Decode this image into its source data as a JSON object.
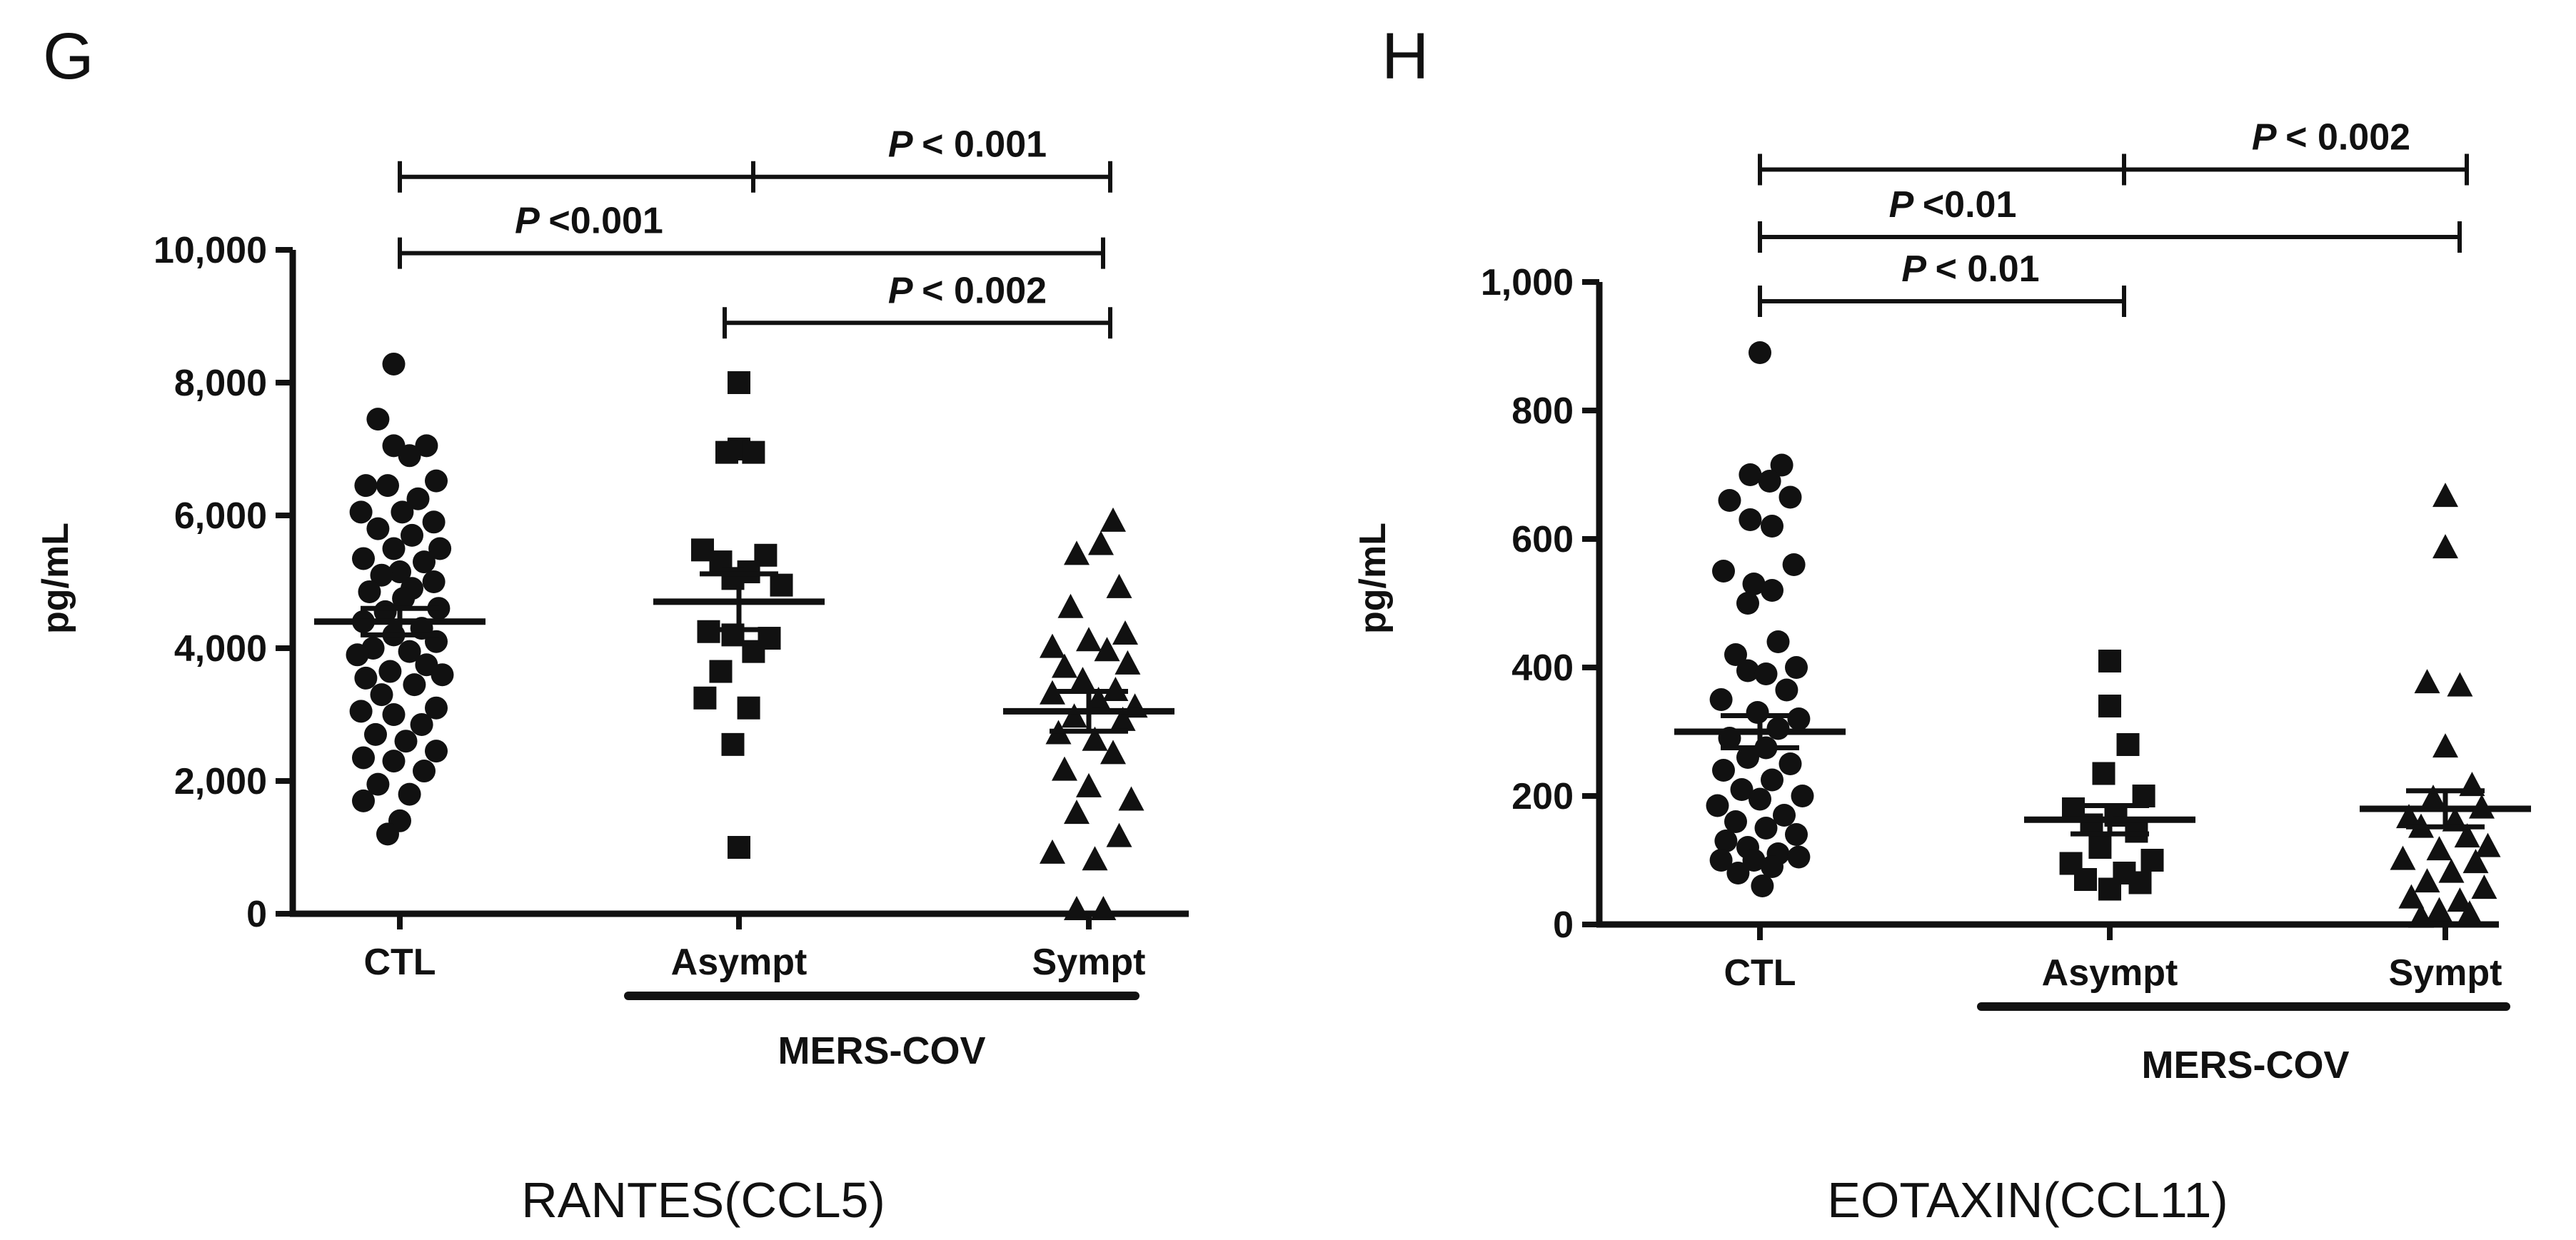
{
  "chart_data": [
    {
      "type": "scatter",
      "panel_letter": "G",
      "caption": "RANTES(CCL5)",
      "ylabel": "pg/mL",
      "ylim": [
        0,
        10000
      ],
      "yticks": [
        0,
        2000,
        4000,
        6000,
        8000,
        10000
      ],
      "ytick_labels": [
        "0",
        "2,000",
        "4,000",
        "6,000",
        "8,000",
        "10,000"
      ],
      "categories": [
        "CTL",
        "Asympt",
        "Sympt"
      ],
      "group_label": "MERS-COV",
      "group_spans": [
        1,
        2
      ],
      "markers": [
        "circle",
        "square",
        "triangle"
      ],
      "series": [
        {
          "category": "CTL",
          "mean": 4400,
          "sem": 200,
          "points": [
            [
              -0.05,
              8280
            ],
            [
              -0.18,
              7450
            ],
            [
              0.22,
              7050
            ],
            [
              -0.05,
              7050
            ],
            [
              0.08,
              6900
            ],
            [
              0.3,
              6520
            ],
            [
              -0.28,
              6450
            ],
            [
              -0.1,
              6450
            ],
            [
              0.15,
              6250
            ],
            [
              -0.32,
              6050
            ],
            [
              0.02,
              6050
            ],
            [
              0.28,
              5900
            ],
            [
              -0.18,
              5800
            ],
            [
              0.1,
              5700
            ],
            [
              0.33,
              5500
            ],
            [
              -0.05,
              5500
            ],
            [
              -0.3,
              5350
            ],
            [
              0.2,
              5300
            ],
            [
              0.0,
              5150
            ],
            [
              -0.15,
              5100
            ],
            [
              0.28,
              5000
            ],
            [
              0.1,
              4900
            ],
            [
              -0.25,
              4850
            ],
            [
              0.03,
              4750
            ],
            [
              0.32,
              4600
            ],
            [
              -0.12,
              4550
            ],
            [
              -0.3,
              4400
            ],
            [
              0.18,
              4300
            ],
            [
              -0.05,
              4200
            ],
            [
              0.3,
              4100
            ],
            [
              -0.22,
              4000
            ],
            [
              0.08,
              3950
            ],
            [
              -0.35,
              3900
            ],
            [
              0.22,
              3750
            ],
            [
              -0.08,
              3650
            ],
            [
              0.35,
              3600
            ],
            [
              -0.28,
              3550
            ],
            [
              0.12,
              3450
            ],
            [
              -0.15,
              3300
            ],
            [
              0.3,
              3100
            ],
            [
              -0.32,
              3050
            ],
            [
              -0.05,
              3000
            ],
            [
              0.18,
              2850
            ],
            [
              -0.2,
              2700
            ],
            [
              0.05,
              2600
            ],
            [
              0.3,
              2450
            ],
            [
              -0.3,
              2350
            ],
            [
              -0.05,
              2300
            ],
            [
              0.2,
              2150
            ],
            [
              -0.18,
              1950
            ],
            [
              0.08,
              1800
            ],
            [
              -0.3,
              1700
            ],
            [
              0.0,
              1400
            ],
            [
              -0.1,
              1200
            ]
          ]
        },
        {
          "category": "Asympt",
          "mean": 4700,
          "sem": 420,
          "points": [
            [
              0.0,
              8000
            ],
            [
              0.0,
              7000
            ],
            [
              -0.1,
              6950
            ],
            [
              0.12,
              6950
            ],
            [
              -0.3,
              5480
            ],
            [
              0.22,
              5400
            ],
            [
              -0.15,
              5300
            ],
            [
              0.08,
              5150
            ],
            [
              -0.05,
              5050
            ],
            [
              0.35,
              4950
            ],
            [
              -0.25,
              4250
            ],
            [
              -0.05,
              4200
            ],
            [
              0.25,
              4150
            ],
            [
              0.12,
              3950
            ],
            [
              -0.15,
              3650
            ],
            [
              -0.28,
              3250
            ],
            [
              0.08,
              3100
            ],
            [
              -0.05,
              2550
            ],
            [
              0.0,
              1000
            ]
          ]
        },
        {
          "category": "Sympt",
          "mean": 3050,
          "sem": 300,
          "points": [
            [
              0.2,
              5900
            ],
            [
              0.1,
              5550
            ],
            [
              -0.1,
              5400
            ],
            [
              0.25,
              4900
            ],
            [
              -0.15,
              4600
            ],
            [
              0.3,
              4200
            ],
            [
              0.0,
              4100
            ],
            [
              -0.3,
              4000
            ],
            [
              0.15,
              3950
            ],
            [
              0.32,
              3750
            ],
            [
              -0.2,
              3700
            ],
            [
              -0.05,
              3500
            ],
            [
              0.22,
              3350
            ],
            [
              -0.3,
              3300
            ],
            [
              0.08,
              3200
            ],
            [
              0.38,
              3100
            ],
            [
              -0.12,
              2950
            ],
            [
              0.28,
              2900
            ],
            [
              -0.25,
              2700
            ],
            [
              0.05,
              2600
            ],
            [
              0.2,
              2400
            ],
            [
              -0.2,
              2150
            ],
            [
              0.0,
              1900
            ],
            [
              0.35,
              1700
            ],
            [
              -0.1,
              1500
            ],
            [
              0.25,
              1150
            ],
            [
              -0.3,
              900
            ],
            [
              0.05,
              800
            ],
            [
              -0.1,
              50
            ],
            [
              0.12,
              50
            ]
          ]
        }
      ],
      "comparisons": [
        {
          "from": 0,
          "to": 2,
          "y": 11100,
          "p": "< 0.001",
          "label_at": "right"
        },
        {
          "from": 0,
          "to": 2,
          "y": 9950,
          "p": "<0.001",
          "label_at": "left"
        },
        {
          "from": 1,
          "to": 2,
          "y": 8900,
          "p": "< 0.002",
          "label_at": "right"
        }
      ]
    },
    {
      "type": "scatter",
      "panel_letter": "H",
      "caption": "EOTAXIN(CCL11)",
      "ylabel": "pg/mL",
      "ylim": [
        0,
        1000
      ],
      "yticks": [
        0,
        200,
        400,
        600,
        800,
        1000
      ],
      "ytick_labels": [
        "0",
        "200",
        "400",
        "600",
        "800",
        "1,000"
      ],
      "categories": [
        "CTL",
        "Asympt",
        "Sympt"
      ],
      "group_label": "MERS-COV",
      "group_spans": [
        1,
        2
      ],
      "markers": [
        "circle",
        "square",
        "triangle"
      ],
      "series": [
        {
          "category": "CTL",
          "mean": 300,
          "sem": 25,
          "points": [
            [
              0.0,
              890
            ],
            [
              0.18,
              715
            ],
            [
              -0.08,
              700
            ],
            [
              0.08,
              690
            ],
            [
              0.25,
              665
            ],
            [
              -0.25,
              660
            ],
            [
              -0.08,
              630
            ],
            [
              0.1,
              620
            ],
            [
              0.28,
              560
            ],
            [
              -0.3,
              550
            ],
            [
              -0.05,
              530
            ],
            [
              0.1,
              520
            ],
            [
              -0.1,
              500
            ],
            [
              0.15,
              440
            ],
            [
              -0.2,
              420
            ],
            [
              0.3,
              400
            ],
            [
              -0.1,
              395
            ],
            [
              0.05,
              390
            ],
            [
              0.22,
              365
            ],
            [
              -0.32,
              350
            ],
            [
              -0.02,
              330
            ],
            [
              0.32,
              320
            ],
            [
              0.15,
              305
            ],
            [
              -0.25,
              290
            ],
            [
              0.05,
              275
            ],
            [
              -0.1,
              260
            ],
            [
              0.25,
              250
            ],
            [
              -0.3,
              240
            ],
            [
              0.1,
              225
            ],
            [
              -0.15,
              210
            ],
            [
              0.35,
              200
            ],
            [
              0.0,
              195
            ],
            [
              -0.35,
              185
            ],
            [
              0.2,
              170
            ],
            [
              -0.2,
              160
            ],
            [
              0.05,
              150
            ],
            [
              0.3,
              140
            ],
            [
              -0.28,
              130
            ],
            [
              -0.1,
              120
            ],
            [
              0.15,
              110
            ],
            [
              0.32,
              105
            ],
            [
              -0.05,
              100
            ],
            [
              -0.32,
              100
            ],
            [
              0.1,
              90
            ],
            [
              -0.18,
              80
            ],
            [
              0.02,
              60
            ]
          ]
        },
        {
          "category": "Asympt",
          "mean": 163,
          "sem": 22,
          "points": [
            [
              0.0,
              410
            ],
            [
              0.0,
              340
            ],
            [
              0.15,
              280
            ],
            [
              -0.05,
              235
            ],
            [
              0.28,
              200
            ],
            [
              -0.3,
              180
            ],
            [
              0.05,
              170
            ],
            [
              -0.15,
              155
            ],
            [
              0.22,
              145
            ],
            [
              -0.08,
              120
            ],
            [
              0.35,
              100
            ],
            [
              -0.32,
              95
            ],
            [
              0.12,
              80
            ],
            [
              -0.2,
              70
            ],
            [
              0.25,
              65
            ],
            [
              0.0,
              55
            ]
          ]
        },
        {
          "category": "Sympt",
          "mean": 180,
          "sem": 28,
          "points": [
            [
              0.0,
              665
            ],
            [
              0.0,
              585
            ],
            [
              -0.15,
              375
            ],
            [
              0.12,
              370
            ],
            [
              0.0,
              275
            ],
            [
              0.22,
              215
            ],
            [
              -0.1,
              195
            ],
            [
              0.3,
              180
            ],
            [
              -0.3,
              165
            ],
            [
              0.08,
              160
            ],
            [
              -0.2,
              150
            ],
            [
              0.18,
              135
            ],
            [
              0.35,
              120
            ],
            [
              -0.05,
              115
            ],
            [
              -0.35,
              100
            ],
            [
              0.25,
              95
            ],
            [
              0.05,
              80
            ],
            [
              -0.15,
              65
            ],
            [
              0.32,
              55
            ],
            [
              -0.28,
              40
            ],
            [
              0.12,
              35
            ],
            [
              -0.05,
              20
            ],
            [
              0.2,
              15
            ],
            [
              -0.2,
              10
            ]
          ]
        }
      ],
      "comparisons": [
        {
          "from": 0,
          "to": 2,
          "y": 1175,
          "p": "< 0.002",
          "label_at": "right"
        },
        {
          "from": 0,
          "to": 2,
          "y": 1070,
          "p": "<0.01",
          "label_at": "left"
        },
        {
          "from": 0,
          "to": 1,
          "y": 970,
          "p": "< 0.01",
          "label_at": "center"
        }
      ]
    }
  ]
}
